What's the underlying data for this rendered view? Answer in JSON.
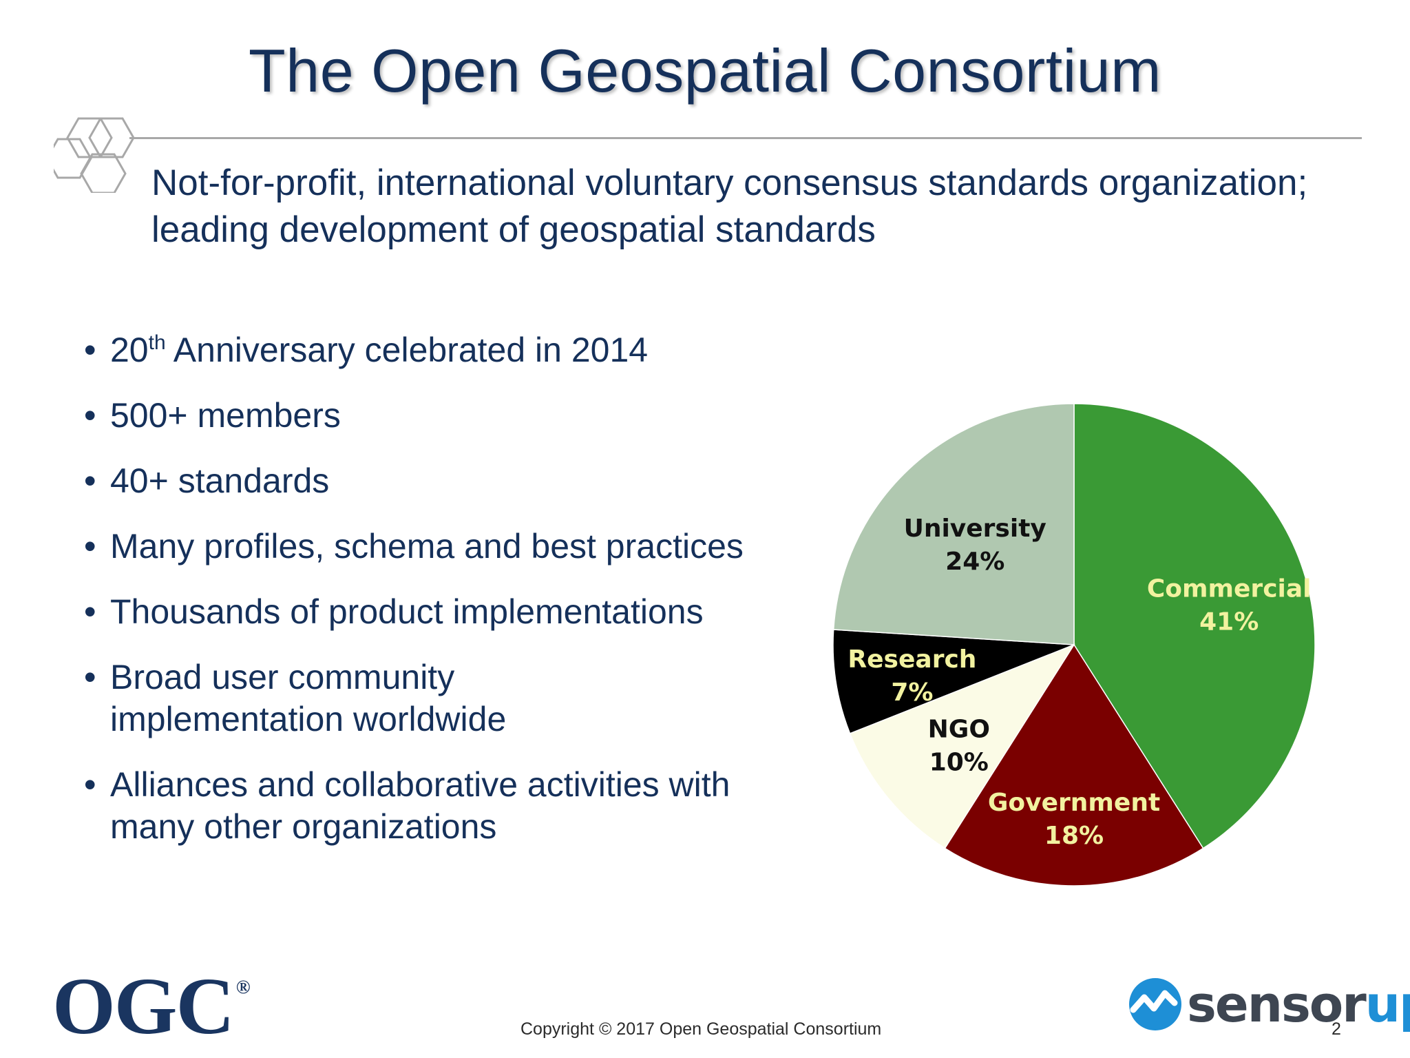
{
  "slide": {
    "title": "The Open Geospatial Consortium",
    "subtitle_lines": [
      "Not-for-profit, international voluntary consensus standards organization;",
      "leading development of geospatial standards"
    ],
    "bullets": [
      {
        "text": "20",
        "sup": "th",
        "rest": " Anniversary celebrated in 2014"
      },
      {
        "text": "500+ members"
      },
      {
        "text": "40+ standards"
      },
      {
        "text": "Many profiles, schema and best practices"
      },
      {
        "text": "Thousands of product implementations"
      },
      {
        "text": "Broad user community implementation worldwide",
        "lines": [
          "Broad user community",
          "implementation worldwide"
        ]
      },
      {
        "text": "Alliances and collaborative activities with many other organizations",
        "lines": [
          "Alliances and collaborative activities with",
          "many other organizations"
        ]
      }
    ]
  },
  "footer": {
    "ogc_logo": "OGC",
    "ogc_registered": "®",
    "copyright": "Copyright © 2017 Open Geospatial Consortium",
    "page_number": "2",
    "sensorup_logo_part1": "sensor",
    "sensorup_logo_part2": "up"
  },
  "colors": {
    "title": "#15305a",
    "commercial": "#3a9a35",
    "government": "#7a0000",
    "ngo": "#fbfbe6",
    "research": "#000000",
    "university": "#b0c8b0"
  },
  "icons": [
    "hexagon-cluster-icon",
    "sensorup-logo-icon"
  ],
  "chart_data": {
    "type": "pie",
    "start_angle_deg": 0,
    "direction": "clockwise",
    "slices": [
      {
        "label": "Commercial",
        "value": 41,
        "display": "41%",
        "color": "#3a9a35",
        "label_color": "#f2f2a0"
      },
      {
        "label": "Government",
        "value": 18,
        "display": "18%",
        "color": "#7a0000",
        "label_color": "#f2f2a0"
      },
      {
        "label": "NGO",
        "value": 10,
        "display": "10%",
        "color": "#fbfbe6",
        "label_color": "#111111"
      },
      {
        "label": "Research",
        "value": 7,
        "display": "7%",
        "color": "#000000",
        "label_color": "#f2f2a0"
      },
      {
        "label": "University",
        "value": 24,
        "display": "24%",
        "color": "#b0c8b0",
        "label_color": "#111111"
      }
    ]
  }
}
